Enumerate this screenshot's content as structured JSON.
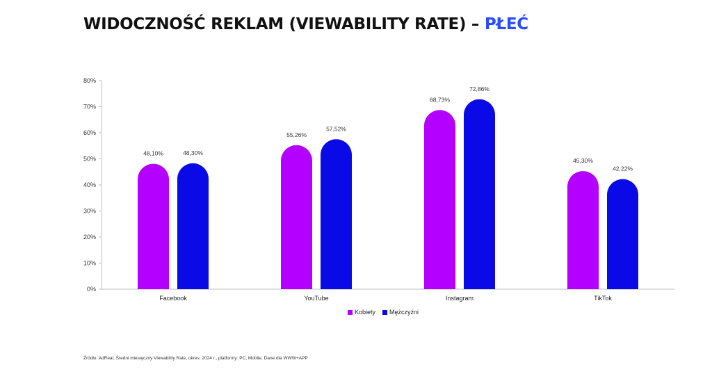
{
  "header": {
    "title_main": "WIDOCZNOŚĆ REKLAM (VIEWABILITY RATE) –",
    "title_accent": "PŁEĆ",
    "accent_color": "#2a4bff"
  },
  "chart_data": {
    "type": "bar",
    "title": "WIDOCZNOŚĆ REKLAM (VIEWABILITY RATE) – PŁEĆ",
    "categories": [
      "Facebook",
      "YouTube",
      "Instagram",
      "TikTok"
    ],
    "series": [
      {
        "name": "Kobiety",
        "color": "#b400ff",
        "values": [
          48.1,
          55.26,
          68.73,
          45.3
        ],
        "labels": [
          "48,10%",
          "55,26%",
          "68,73%",
          "45,30%"
        ]
      },
      {
        "name": "Mężczyźni",
        "color": "#0a0ae6",
        "values": [
          48.3,
          57.52,
          72.86,
          42.22
        ],
        "labels": [
          "48,30%",
          "57,52%",
          "72,86%",
          "42,22%"
        ]
      }
    ],
    "yticks": [
      "0%",
      "10%",
      "20%",
      "30%",
      "40%",
      "50%",
      "60%",
      "70%",
      "80%"
    ],
    "ylim": [
      0,
      80
    ],
    "xlabel": "",
    "ylabel": "",
    "legend_position": "bottom"
  },
  "footer": {
    "source": "Źródło: AdReal, Średni miesięczny Viewability Rate, okres: 2024 r., platformy: PC, Mobile, Dane dla WWW+APP"
  }
}
